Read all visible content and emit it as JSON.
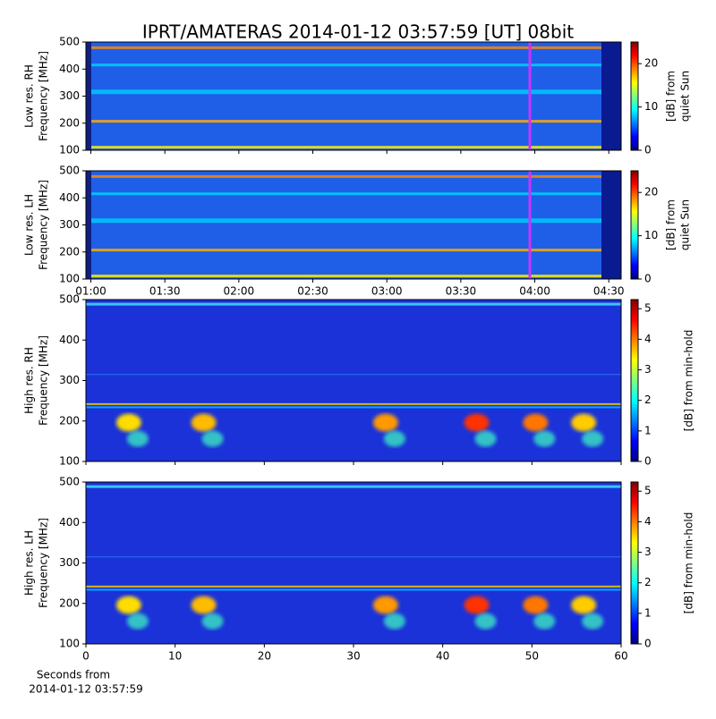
{
  "title": "IPRT/AMATERAS 2014-01-12 03:57:59 [UT]   08bit",
  "chart_data": [
    {
      "type": "spectrogram",
      "ylabel": [
        "Low res. RH",
        "Frequency [MHz]"
      ],
      "ylim": [
        100,
        500
      ],
      "yticks": [
        100,
        200,
        300,
        400,
        500
      ],
      "xlim": [
        58,
        275
      ],
      "xticks": [
        60,
        90,
        120,
        150,
        180,
        210,
        240,
        270
      ],
      "xtick_labels": false,
      "marker_x": 238,
      "marker_color": "#cc33ff",
      "colorbar": {
        "label": [
          "[dB] from",
          "quiet Sun"
        ],
        "lim": [
          0,
          25
        ],
        "ticks": [
          0,
          10,
          20
        ]
      }
    },
    {
      "type": "spectrogram",
      "ylabel": [
        "Low res. LH",
        "Frequency [MHz]"
      ],
      "ylim": [
        100,
        500
      ],
      "yticks": [
        100,
        200,
        300,
        400,
        500
      ],
      "xlim": [
        58,
        275
      ],
      "xticks": [
        {
          "value": 60,
          "label": "01:00"
        },
        {
          "value": 90,
          "label": "01:30"
        },
        {
          "value": 120,
          "label": "02:00"
        },
        {
          "value": 150,
          "label": "02:30"
        },
        {
          "value": 180,
          "label": "03:00"
        },
        {
          "value": 210,
          "label": "03:30"
        },
        {
          "value": 240,
          "label": "04:00"
        },
        {
          "value": 270,
          "label": "04:30"
        }
      ],
      "xtick_labels": true,
      "marker_x": 238,
      "marker_color": "#cc33ff",
      "colorbar": {
        "label": [
          "[dB] from",
          "quiet Sun"
        ],
        "lim": [
          0,
          25
        ],
        "ticks": [
          0,
          10,
          20
        ]
      }
    },
    {
      "type": "spectrogram",
      "ylabel": [
        "High res. RH",
        "Frequency [MHz]"
      ],
      "ylim": [
        100,
        500
      ],
      "yticks": [
        100,
        200,
        300,
        400,
        500
      ],
      "xlim": [
        0,
        60
      ],
      "xticks": [
        0,
        10,
        20,
        30,
        40,
        50,
        60
      ],
      "xtick_labels": false,
      "colorbar": {
        "label": [
          "[dB] from min-hold"
        ],
        "lim": [
          0,
          5.3
        ],
        "ticks": [
          0,
          1,
          2,
          3,
          4,
          5
        ]
      }
    },
    {
      "type": "spectrogram",
      "ylabel": [
        "High res. LH",
        "Frequency [MHz]"
      ],
      "ylim": [
        100,
        500
      ],
      "yticks": [
        100,
        200,
        300,
        400,
        500
      ],
      "xlim": [
        0,
        60
      ],
      "xticks": [
        0,
        10,
        20,
        30,
        40,
        50,
        60
      ],
      "xtick_labels": true,
      "xlabel": [
        "Seconds from",
        "2014-01-12 03:57:59"
      ],
      "colorbar": {
        "label": [
          "[dB] from min-hold"
        ],
        "lim": [
          0,
          5.3
        ],
        "ticks": [
          0,
          1,
          2,
          3,
          4,
          5
        ]
      }
    }
  ]
}
